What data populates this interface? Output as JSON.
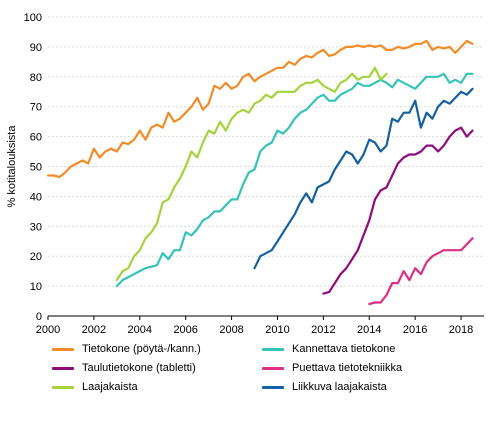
{
  "chart_data": {
    "type": "line",
    "title": "",
    "xlabel": "",
    "ylabel": "% kotitalouksista",
    "xlim": [
      2000,
      2019
    ],
    "ylim": [
      0,
      100
    ],
    "x_ticks": [
      2000,
      2002,
      2004,
      2006,
      2008,
      2010,
      2012,
      2014,
      2016,
      2018
    ],
    "y_ticks": [
      0,
      10,
      20,
      30,
      40,
      50,
      60,
      70,
      80,
      90,
      100
    ],
    "grid": "horizontal",
    "legend_position": "bottom",
    "series": [
      {
        "name": "Tietokone (pöytä-/kann.)",
        "color": "#f28c28",
        "points": [
          [
            2000.0,
            47
          ],
          [
            2000.25,
            47
          ],
          [
            2000.5,
            46.5
          ],
          [
            2000.75,
            48
          ],
          [
            2001.0,
            50
          ],
          [
            2001.25,
            51
          ],
          [
            2001.5,
            52
          ],
          [
            2001.75,
            51
          ],
          [
            2002.0,
            56
          ],
          [
            2002.25,
            53
          ],
          [
            2002.5,
            55
          ],
          [
            2002.75,
            56
          ],
          [
            2003.0,
            55
          ],
          [
            2003.25,
            58
          ],
          [
            2003.5,
            57.5
          ],
          [
            2003.75,
            59
          ],
          [
            2004.0,
            62
          ],
          [
            2004.25,
            59
          ],
          [
            2004.5,
            63
          ],
          [
            2004.75,
            64
          ],
          [
            2005.0,
            63
          ],
          [
            2005.25,
            68
          ],
          [
            2005.5,
            65
          ],
          [
            2005.75,
            66
          ],
          [
            2006.0,
            68
          ],
          [
            2006.25,
            70
          ],
          [
            2006.5,
            73
          ],
          [
            2006.75,
            69
          ],
          [
            2007.0,
            71
          ],
          [
            2007.25,
            77
          ],
          [
            2007.5,
            76
          ],
          [
            2007.75,
            78
          ],
          [
            2008.0,
            76
          ],
          [
            2008.25,
            77
          ],
          [
            2008.5,
            80
          ],
          [
            2008.75,
            81
          ],
          [
            2009.0,
            78.5
          ],
          [
            2009.25,
            80
          ],
          [
            2009.5,
            81
          ],
          [
            2009.75,
            82
          ],
          [
            2010.0,
            83
          ],
          [
            2010.25,
            83
          ],
          [
            2010.5,
            85
          ],
          [
            2010.75,
            84
          ],
          [
            2011.0,
            86
          ],
          [
            2011.25,
            87
          ],
          [
            2011.5,
            86.5
          ],
          [
            2011.75,
            88
          ],
          [
            2012.0,
            89
          ],
          [
            2012.25,
            87
          ],
          [
            2012.5,
            87.5
          ],
          [
            2012.75,
            89
          ],
          [
            2013.0,
            90
          ],
          [
            2013.25,
            90
          ],
          [
            2013.5,
            90.5
          ],
          [
            2013.75,
            90
          ],
          [
            2014.0,
            90.5
          ],
          [
            2014.25,
            90
          ],
          [
            2014.5,
            90.5
          ],
          [
            2014.75,
            89
          ],
          [
            2015.0,
            89
          ],
          [
            2015.25,
            90
          ],
          [
            2015.5,
            89.5
          ],
          [
            2015.75,
            90
          ],
          [
            2016.0,
            91
          ],
          [
            2016.25,
            91
          ],
          [
            2016.5,
            92
          ],
          [
            2016.75,
            89
          ],
          [
            2017.0,
            90
          ],
          [
            2017.25,
            89.5
          ],
          [
            2017.5,
            90
          ],
          [
            2017.75,
            88
          ],
          [
            2018.0,
            90
          ],
          [
            2018.25,
            92
          ],
          [
            2018.5,
            91
          ]
        ]
      },
      {
        "name": "Kannettava tietokone",
        "color": "#33c3b9",
        "points": [
          [
            2003.0,
            10
          ],
          [
            2003.25,
            12
          ],
          [
            2003.5,
            13
          ],
          [
            2003.75,
            14
          ],
          [
            2004.0,
            15
          ],
          [
            2004.25,
            16
          ],
          [
            2004.5,
            16.5
          ],
          [
            2004.75,
            17
          ],
          [
            2005.0,
            21
          ],
          [
            2005.25,
            19
          ],
          [
            2005.5,
            22
          ],
          [
            2005.75,
            22
          ],
          [
            2006.0,
            28
          ],
          [
            2006.25,
            27
          ],
          [
            2006.5,
            29
          ],
          [
            2006.75,
            32
          ],
          [
            2007.0,
            33
          ],
          [
            2007.25,
            35
          ],
          [
            2007.5,
            35
          ],
          [
            2007.75,
            37
          ],
          [
            2008.0,
            39
          ],
          [
            2008.25,
            39
          ],
          [
            2008.5,
            44
          ],
          [
            2008.75,
            48
          ],
          [
            2009.0,
            49
          ],
          [
            2009.25,
            55
          ],
          [
            2009.5,
            57
          ],
          [
            2009.75,
            58
          ],
          [
            2010.0,
            62
          ],
          [
            2010.25,
            61
          ],
          [
            2010.5,
            63
          ],
          [
            2010.75,
            66
          ],
          [
            2011.0,
            68
          ],
          [
            2011.25,
            69
          ],
          [
            2011.5,
            71
          ],
          [
            2011.75,
            73
          ],
          [
            2012.0,
            74
          ],
          [
            2012.25,
            72
          ],
          [
            2012.5,
            72
          ],
          [
            2012.75,
            74
          ],
          [
            2013.0,
            75
          ],
          [
            2013.25,
            76
          ],
          [
            2013.5,
            78
          ],
          [
            2013.75,
            77
          ],
          [
            2014.0,
            77
          ],
          [
            2014.25,
            78
          ],
          [
            2014.5,
            79
          ],
          [
            2014.75,
            78
          ],
          [
            2015.0,
            76.5
          ],
          [
            2015.25,
            79
          ],
          [
            2015.5,
            78
          ],
          [
            2015.75,
            77
          ],
          [
            2016.0,
            76
          ],
          [
            2016.25,
            78
          ],
          [
            2016.5,
            80
          ],
          [
            2016.75,
            80
          ],
          [
            2017.0,
            80
          ],
          [
            2017.25,
            81
          ],
          [
            2017.5,
            78
          ],
          [
            2017.75,
            79
          ],
          [
            2018.0,
            78
          ],
          [
            2018.25,
            81
          ],
          [
            2018.5,
            81
          ]
        ]
      },
      {
        "name": "Taulutietokone (tabletti)",
        "color": "#8e0c7c",
        "points": [
          [
            2012.0,
            7.5
          ],
          [
            2012.25,
            8
          ],
          [
            2012.5,
            11
          ],
          [
            2012.75,
            14
          ],
          [
            2013.0,
            16
          ],
          [
            2013.25,
            19
          ],
          [
            2013.5,
            22
          ],
          [
            2013.75,
            27
          ],
          [
            2014.0,
            32
          ],
          [
            2014.25,
            39
          ],
          [
            2014.5,
            42
          ],
          [
            2014.75,
            43
          ],
          [
            2015.0,
            47
          ],
          [
            2015.25,
            51
          ],
          [
            2015.5,
            53
          ],
          [
            2015.75,
            54
          ],
          [
            2016.0,
            54
          ],
          [
            2016.25,
            55
          ],
          [
            2016.5,
            57
          ],
          [
            2016.75,
            57
          ],
          [
            2017.0,
            55
          ],
          [
            2017.25,
            57
          ],
          [
            2017.5,
            60
          ],
          [
            2017.75,
            62
          ],
          [
            2018.0,
            63
          ],
          [
            2018.25,
            60
          ],
          [
            2018.5,
            62
          ]
        ]
      },
      {
        "name": "Puettava tietotekniikka",
        "color": "#de2f86",
        "points": [
          [
            2014.0,
            4
          ],
          [
            2014.25,
            4.5
          ],
          [
            2014.5,
            4.5
          ],
          [
            2014.75,
            7
          ],
          [
            2015.0,
            11
          ],
          [
            2015.25,
            11
          ],
          [
            2015.5,
            15
          ],
          [
            2015.75,
            12
          ],
          [
            2016.0,
            16
          ],
          [
            2016.25,
            14
          ],
          [
            2016.5,
            18
          ],
          [
            2016.75,
            20
          ],
          [
            2017.0,
            21
          ],
          [
            2017.25,
            22
          ],
          [
            2017.5,
            22
          ],
          [
            2017.75,
            22
          ],
          [
            2018.0,
            22
          ],
          [
            2018.25,
            24
          ],
          [
            2018.5,
            26
          ]
        ]
      },
      {
        "name": "Laajakaista",
        "color": "#a6d33b",
        "points": [
          [
            2003.0,
            12
          ],
          [
            2003.25,
            15
          ],
          [
            2003.5,
            16
          ],
          [
            2003.75,
            20
          ],
          [
            2004.0,
            22
          ],
          [
            2004.25,
            26
          ],
          [
            2004.5,
            28
          ],
          [
            2004.75,
            31
          ],
          [
            2005.0,
            38
          ],
          [
            2005.25,
            39
          ],
          [
            2005.5,
            43
          ],
          [
            2005.75,
            46
          ],
          [
            2006.0,
            50
          ],
          [
            2006.25,
            55
          ],
          [
            2006.5,
            53
          ],
          [
            2006.75,
            58
          ],
          [
            2007.0,
            62
          ],
          [
            2007.25,
            61
          ],
          [
            2007.5,
            65
          ],
          [
            2007.75,
            62
          ],
          [
            2008.0,
            66
          ],
          [
            2008.25,
            68
          ],
          [
            2008.5,
            69
          ],
          [
            2008.75,
            68
          ],
          [
            2009.0,
            71
          ],
          [
            2009.25,
            72
          ],
          [
            2009.5,
            74
          ],
          [
            2009.75,
            73
          ],
          [
            2010.0,
            75
          ],
          [
            2010.25,
            75
          ],
          [
            2010.5,
            75
          ],
          [
            2010.75,
            75
          ],
          [
            2011.0,
            77
          ],
          [
            2011.25,
            78
          ],
          [
            2011.5,
            78
          ],
          [
            2011.75,
            79
          ],
          [
            2012.0,
            77
          ],
          [
            2012.25,
            76
          ],
          [
            2012.5,
            75
          ],
          [
            2012.75,
            78
          ],
          [
            2013.0,
            79
          ],
          [
            2013.25,
            81
          ],
          [
            2013.5,
            79
          ],
          [
            2013.75,
            80
          ],
          [
            2014.0,
            80
          ],
          [
            2014.25,
            83
          ],
          [
            2014.5,
            79
          ],
          [
            2014.75,
            81
          ]
        ]
      },
      {
        "name": "Liikkuva laajakaista",
        "color": "#1560a0",
        "points": [
          [
            2009.0,
            16
          ],
          [
            2009.25,
            20
          ],
          [
            2009.5,
            21
          ],
          [
            2009.75,
            22
          ],
          [
            2010.0,
            25
          ],
          [
            2010.25,
            28
          ],
          [
            2010.5,
            31
          ],
          [
            2010.75,
            34
          ],
          [
            2011.0,
            38
          ],
          [
            2011.25,
            41
          ],
          [
            2011.5,
            38
          ],
          [
            2011.75,
            43
          ],
          [
            2012.0,
            44
          ],
          [
            2012.25,
            45
          ],
          [
            2012.5,
            49
          ],
          [
            2012.75,
            52
          ],
          [
            2013.0,
            55
          ],
          [
            2013.25,
            54
          ],
          [
            2013.5,
            51
          ],
          [
            2013.75,
            54
          ],
          [
            2014.0,
            59
          ],
          [
            2014.25,
            58
          ],
          [
            2014.5,
            55
          ],
          [
            2014.75,
            57
          ],
          [
            2015.0,
            66
          ],
          [
            2015.25,
            65
          ],
          [
            2015.5,
            68
          ],
          [
            2015.75,
            68
          ],
          [
            2016.0,
            72
          ],
          [
            2016.25,
            63
          ],
          [
            2016.5,
            68
          ],
          [
            2016.75,
            66
          ],
          [
            2017.0,
            70
          ],
          [
            2017.25,
            72
          ],
          [
            2017.5,
            71
          ],
          [
            2017.75,
            73
          ],
          [
            2018.0,
            75
          ],
          [
            2018.25,
            74
          ],
          [
            2018.5,
            76
          ]
        ]
      }
    ]
  }
}
